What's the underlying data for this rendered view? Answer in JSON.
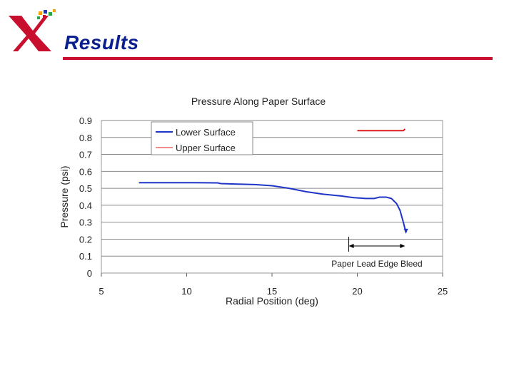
{
  "slide": {
    "title": "Results",
    "logo_letter": "X"
  },
  "colors": {
    "title": "#0b1f8f",
    "rule": "#c8102e",
    "lower_surface": "#1f35c8",
    "upper_surface": "#e01b1b"
  },
  "chart_data": {
    "type": "line",
    "title": "Pressure Along Paper Surface",
    "xlabel": "Radial Position (deg)",
    "ylabel": "Pressure (psi)",
    "xlim": [
      5,
      25
    ],
    "ylim": [
      0,
      0.9
    ],
    "x_ticks": [
      5,
      10,
      15,
      20,
      25
    ],
    "y_ticks": [
      0,
      0.1,
      0.2,
      0.3,
      0.4,
      0.5,
      0.6,
      0.7,
      0.8,
      0.9
    ],
    "grid": "horizontal",
    "legend_position": "top-left",
    "series": [
      {
        "name": "Lower Surface",
        "color": "#1f35c8",
        "points": [
          [
            7.2,
            0.533
          ],
          [
            9.0,
            0.533
          ],
          [
            10.5,
            0.533
          ],
          [
            11.8,
            0.532
          ],
          [
            12.0,
            0.528
          ],
          [
            13.0,
            0.525
          ],
          [
            14.0,
            0.522
          ],
          [
            15.0,
            0.515
          ],
          [
            16.0,
            0.5
          ],
          [
            17.0,
            0.48
          ],
          [
            18.0,
            0.465
          ],
          [
            19.0,
            0.455
          ],
          [
            19.8,
            0.445
          ],
          [
            20.5,
            0.44
          ],
          [
            21.0,
            0.44
          ],
          [
            21.3,
            0.448
          ],
          [
            21.7,
            0.448
          ],
          [
            22.0,
            0.44
          ],
          [
            22.3,
            0.41
          ],
          [
            22.5,
            0.37
          ],
          [
            22.7,
            0.3
          ],
          [
            22.85,
            0.24
          ]
        ]
      },
      {
        "name": "Upper Surface",
        "color": "#e01b1b",
        "points": [
          [
            20.0,
            0.84
          ],
          [
            22.7,
            0.84
          ],
          [
            22.8,
            0.85
          ]
        ]
      }
    ],
    "annotation": {
      "text": "Paper Lead Edge Bleed",
      "x_from": 19.5,
      "x_to": 22.8,
      "y": 0.16
    }
  }
}
